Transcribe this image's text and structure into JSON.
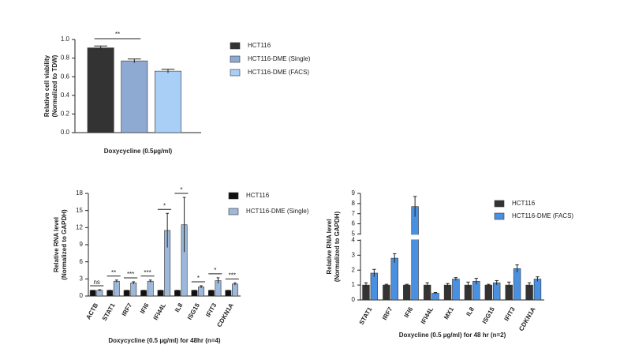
{
  "chart_data": [
    {
      "type": "bar",
      "categories": [
        null
      ],
      "y_label": [
        "Relative cell viability",
        "(Normalized to TDW)"
      ],
      "x_label": "Doxycycline (0.5µg/ml)",
      "series": [
        {
          "name": "HCT116",
          "color": "#333333",
          "values": [
            0.91
          ],
          "errors": [
            0.02
          ]
        },
        {
          "name": "HCT116-DME (Single)",
          "color": "#8eaad3",
          "values": [
            0.77
          ],
          "errors": [
            0.02
          ]
        },
        {
          "name": "HCT116-DME (FACS)",
          "color": "#a9cff7",
          "values": [
            0.66
          ],
          "errors": [
            0.02
          ]
        }
      ],
      "ylim": [
        0,
        1.0
      ],
      "yticks": [
        {
          "value": 0,
          "label": "0.0"
        },
        {
          "value": 0.2,
          "label": "0.2"
        },
        {
          "value": 0.4,
          "label": "0.4"
        },
        {
          "value": 0.6,
          "label": "0.6"
        },
        {
          "value": 0.8,
          "label": "0.8"
        },
        {
          "value": 1.0,
          "label": "1.0"
        }
      ],
      "annotation": "**"
    },
    {
      "type": "bar",
      "categories": [
        "ACTB",
        "STAT1",
        "IRF7",
        "IFI6",
        "IFI44L",
        "IL8",
        "ISG15",
        "IFIT3",
        "CDKN1A"
      ],
      "y_label": [
        "Relative RNA level",
        "(Normalized to GAPDH)"
      ],
      "x_label": "Doxycycline (0.5 µg/ml) for 48hr (n=4)",
      "series": [
        {
          "name": "HCT116",
          "color": "#111111",
          "values": [
            1,
            1,
            1,
            1,
            1,
            1,
            1,
            1,
            1
          ],
          "errors": [
            0,
            0,
            0,
            0,
            0,
            0,
            0,
            0,
            0
          ]
        },
        {
          "name": "HCT116-DME (Single)",
          "color": "#9db8db",
          "values": [
            1.0,
            2.6,
            2.3,
            2.6,
            11.5,
            12.5,
            1.6,
            2.7,
            2.1
          ],
          "errors": [
            0.1,
            0.2,
            0.2,
            0.2,
            3.0,
            4.8,
            0.2,
            0.5,
            0.2
          ]
        }
      ],
      "ylim": [
        0,
        18
      ],
      "yticks": [
        0,
        3,
        6,
        9,
        12,
        15,
        18
      ],
      "significance": [
        "ns",
        "**",
        "***",
        "***",
        "*",
        "*",
        "*",
        "*",
        "***"
      ]
    },
    {
      "type": "bar",
      "categories": [
        "STAT1",
        "IRF7",
        "IFI6",
        "IFI44L",
        "MX1",
        "IL8",
        "ISG15",
        "IFIT3",
        "CDKN1A"
      ],
      "y_label": [
        "Relative RNA level",
        "(Normalized to GAPDH)"
      ],
      "x_label": "Doxycline (0.5 µg/ml) for 48 hr (n=2)",
      "series": [
        {
          "name": "HCT116",
          "color": "#333333",
          "values": [
            1,
            1,
            1,
            1,
            1,
            1,
            1,
            1,
            1
          ],
          "errors": [
            0.15,
            0.05,
            0.05,
            0.15,
            0.1,
            0.2,
            0.05,
            0.2,
            0.15
          ]
        },
        {
          "name": "HCT116-DME (FACS)",
          "color": "#4a90e2",
          "values": [
            1.8,
            2.8,
            7.7,
            0.45,
            1.4,
            1.25,
            1.15,
            2.1,
            1.4
          ],
          "errors": [
            0.25,
            0.3,
            1.0,
            0.05,
            0.1,
            0.2,
            0.15,
            0.25,
            0.15
          ]
        }
      ],
      "ylim": [
        0,
        9
      ],
      "axis_break": [
        4,
        5
      ],
      "yticks": [
        0,
        1,
        2,
        3,
        4,
        5,
        6,
        7,
        8,
        9
      ]
    }
  ]
}
